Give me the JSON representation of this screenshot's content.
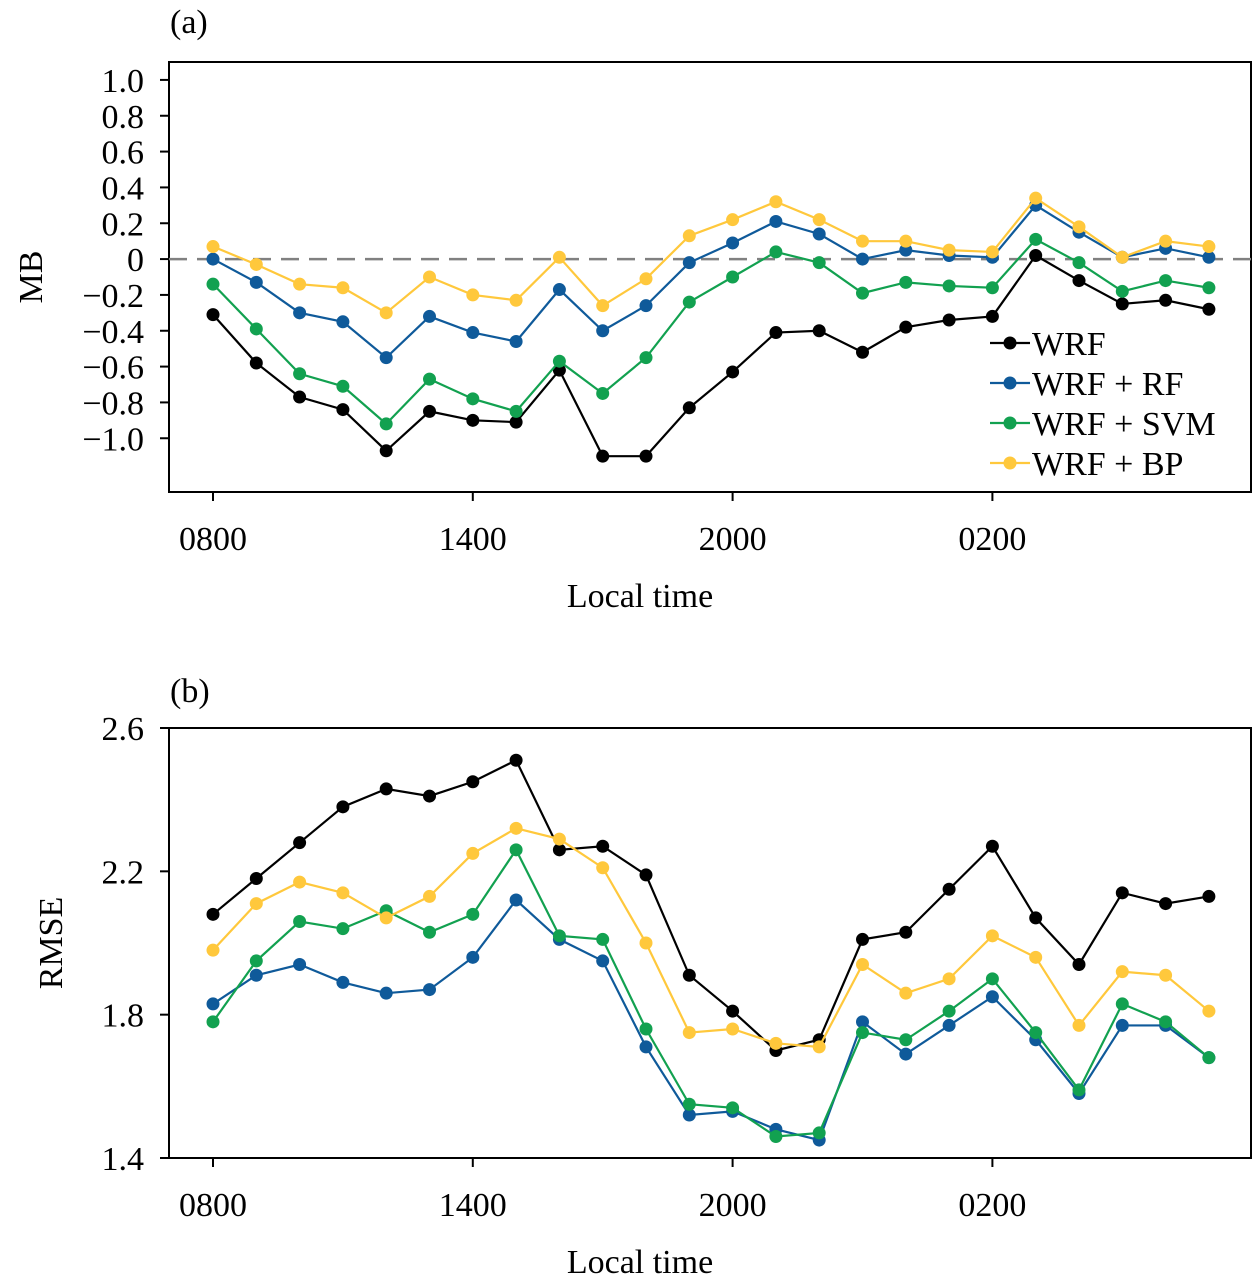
{
  "chart_data": [
    {
      "type": "line",
      "panel_label": "(a)",
      "xlabel": "Local time",
      "ylabel": "MB",
      "x_ticks": [
        "0800",
        "1400",
        "2000",
        "0200"
      ],
      "x_tick_hours": [
        0,
        6,
        12,
        18
      ],
      "x_hours": [
        0,
        1,
        2,
        3,
        4,
        5,
        6,
        7,
        8,
        9,
        10,
        11,
        12,
        13,
        14,
        15,
        16,
        17,
        18,
        19,
        20,
        21,
        22,
        23
      ],
      "ylim": [
        -1.3,
        1.1
      ],
      "y_ticks": [
        1.0,
        0.8,
        0.6,
        0.4,
        0.2,
        0,
        -0.2,
        -0.4,
        -0.6,
        -0.8,
        -1.0
      ],
      "y_tick_labels": [
        "1.0",
        "0.8",
        "0.6",
        "0.4",
        "0.2",
        "0",
        "−0.2",
        "−0.4",
        "−0.6",
        "−0.8",
        "−1.0"
      ],
      "reference_line": 0,
      "legend_position": "lower-right",
      "series": [
        {
          "name": "WRF",
          "color": "#000000",
          "values": [
            -0.31,
            -0.58,
            -0.77,
            -0.84,
            -1.07,
            -0.85,
            -0.9,
            -0.91,
            -0.62,
            -1.1,
            -1.1,
            -0.83,
            -0.63,
            -0.41,
            -0.4,
            -0.52,
            -0.38,
            -0.34,
            -0.32,
            0.02,
            -0.12,
            -0.25,
            -0.23,
            -0.28
          ]
        },
        {
          "name": "WRF + RF",
          "color": "#0F5A9A",
          "values": [
            0.0,
            -0.13,
            -0.3,
            -0.35,
            -0.55,
            -0.32,
            -0.41,
            -0.46,
            -0.17,
            -0.4,
            -0.26,
            -0.02,
            0.09,
            0.21,
            0.14,
            0.0,
            0.05,
            0.02,
            0.01,
            0.3,
            0.15,
            0.01,
            0.06,
            0.01
          ]
        },
        {
          "name": "WRF + SVM",
          "color": "#12A150",
          "values": [
            -0.14,
            -0.39,
            -0.64,
            -0.71,
            -0.92,
            -0.67,
            -0.78,
            -0.85,
            -0.57,
            -0.75,
            -0.55,
            -0.24,
            -0.1,
            0.04,
            -0.02,
            -0.19,
            -0.13,
            -0.15,
            -0.16,
            0.11,
            -0.02,
            -0.18,
            -0.12,
            -0.16
          ]
        },
        {
          "name": "WRF + BP",
          "color": "#FFC83C",
          "values": [
            0.07,
            -0.03,
            -0.14,
            -0.16,
            -0.3,
            -0.1,
            -0.2,
            -0.23,
            0.01,
            -0.26,
            -0.11,
            0.13,
            0.22,
            0.32,
            0.22,
            0.1,
            0.1,
            0.05,
            0.04,
            0.34,
            0.18,
            0.01,
            0.1,
            0.07
          ]
        }
      ]
    },
    {
      "type": "line",
      "panel_label": "(b)",
      "xlabel": "Local time",
      "ylabel": "RMSE",
      "x_ticks": [
        "0800",
        "1400",
        "2000",
        "0200"
      ],
      "x_tick_hours": [
        0,
        6,
        12,
        18
      ],
      "x_hours": [
        0,
        1,
        2,
        3,
        4,
        5,
        6,
        7,
        8,
        9,
        10,
        11,
        12,
        13,
        14,
        15,
        16,
        17,
        18,
        19,
        20,
        21,
        22,
        23
      ],
      "ylim": [
        1.4,
        2.6
      ],
      "y_ticks": [
        2.6,
        2.2,
        1.8,
        1.4
      ],
      "y_tick_labels": [
        "2.6",
        "2.2",
        "1.8",
        "1.4"
      ],
      "series": [
        {
          "name": "WRF",
          "color": "#000000",
          "values": [
            2.08,
            2.18,
            2.28,
            2.38,
            2.43,
            2.41,
            2.45,
            2.51,
            2.26,
            2.27,
            2.19,
            1.91,
            1.81,
            1.7,
            1.73,
            2.01,
            2.03,
            2.15,
            2.27,
            2.07,
            1.94,
            2.14,
            2.11,
            2.13
          ]
        },
        {
          "name": "WRF + RF",
          "color": "#0F5A9A",
          "values": [
            1.83,
            1.91,
            1.94,
            1.89,
            1.86,
            1.87,
            1.96,
            2.12,
            2.01,
            1.95,
            1.71,
            1.52,
            1.53,
            1.48,
            1.45,
            1.78,
            1.69,
            1.77,
            1.85,
            1.73,
            1.58,
            1.77,
            1.77,
            1.68
          ]
        },
        {
          "name": "WRF + SVM",
          "color": "#12A150",
          "values": [
            1.78,
            1.95,
            2.06,
            2.04,
            2.09,
            2.03,
            2.08,
            2.26,
            2.02,
            2.01,
            1.76,
            1.55,
            1.54,
            1.46,
            1.47,
            1.75,
            1.73,
            1.81,
            1.9,
            1.75,
            1.59,
            1.83,
            1.78,
            1.68
          ]
        },
        {
          "name": "WRF + BP",
          "color": "#FFC83C",
          "values": [
            1.98,
            2.11,
            2.17,
            2.14,
            2.07,
            2.13,
            2.25,
            2.32,
            2.29,
            2.21,
            2.0,
            1.75,
            1.76,
            1.72,
            1.71,
            1.94,
            1.86,
            1.9,
            2.02,
            1.96,
            1.77,
            1.92,
            1.91,
            1.81
          ]
        }
      ]
    }
  ]
}
